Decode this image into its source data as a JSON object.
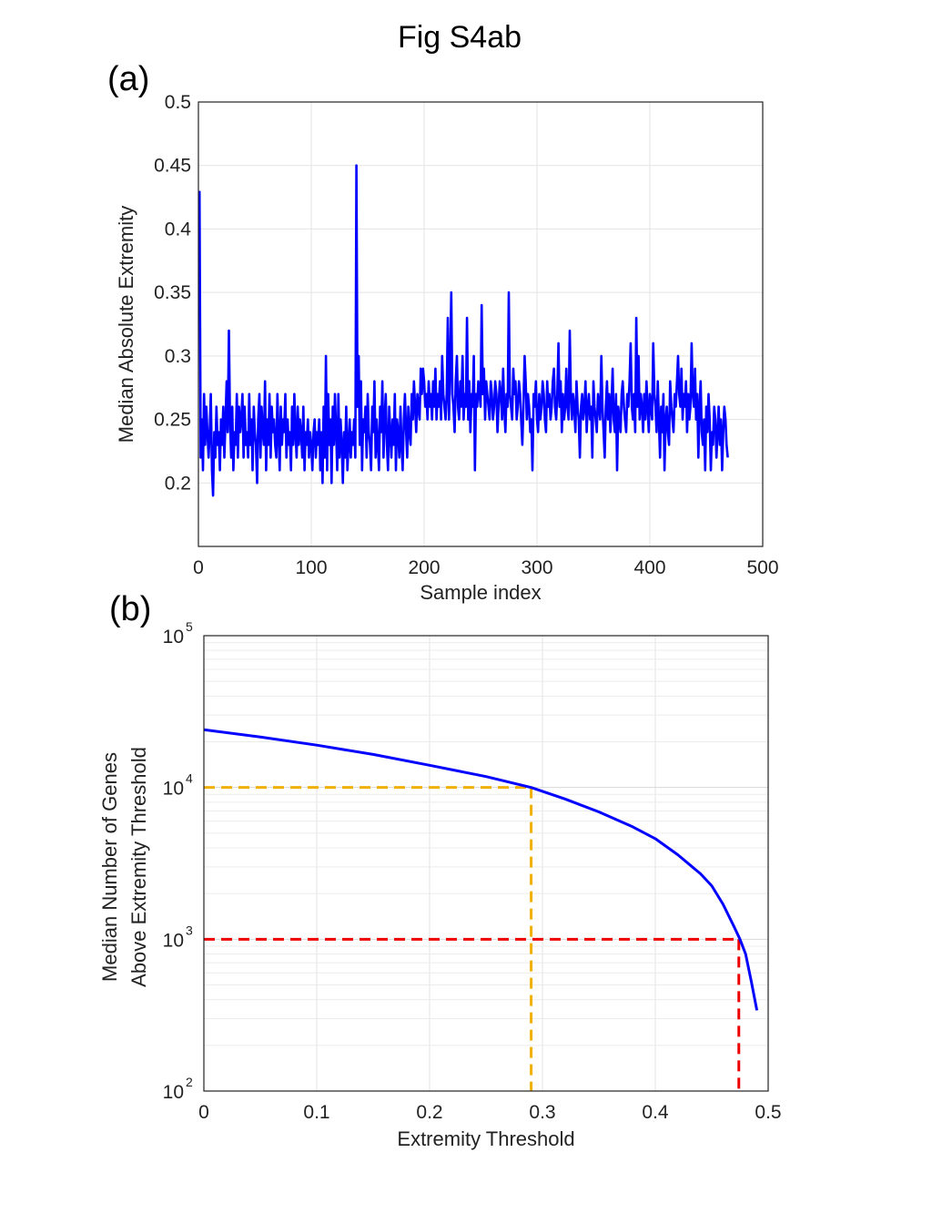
{
  "figure": {
    "title": "Fig S4ab"
  },
  "panels": {
    "a_label": "(a)",
    "b_label": "(b)"
  },
  "chart_data": [
    {
      "type": "line",
      "xlabel": "Sample index",
      "ylabel": "Median Absolute Extremity",
      "xlim": [
        0,
        500
      ],
      "ylim": [
        0.15,
        0.5
      ],
      "xticks": [
        0,
        100,
        200,
        300,
        400,
        500
      ],
      "yticks": [
        0.2,
        0.25,
        0.3,
        0.35,
        0.4,
        0.45,
        0.5
      ],
      "ytick_labels": [
        "0.2",
        "0.25",
        "0.3",
        "0.35",
        "0.4",
        "0.45",
        "0.5"
      ],
      "grid": true,
      "line_color": "#0000ff",
      "series": [
        {
          "x_start": 1,
          "x_step": 1,
          "y": [
            0.43,
            0.22,
            0.25,
            0.21,
            0.27,
            0.23,
            0.26,
            0.24,
            0.22,
            0.24,
            0.27,
            0.21,
            0.19,
            0.24,
            0.22,
            0.26,
            0.23,
            0.24,
            0.21,
            0.25,
            0.23,
            0.26,
            0.22,
            0.25,
            0.28,
            0.24,
            0.32,
            0.25,
            0.22,
            0.26,
            0.21,
            0.24,
            0.23,
            0.27,
            0.22,
            0.26,
            0.24,
            0.25,
            0.27,
            0.22,
            0.26,
            0.23,
            0.24,
            0.22,
            0.27,
            0.23,
            0.25,
            0.21,
            0.26,
            0.24,
            0.23,
            0.2,
            0.25,
            0.27,
            0.22,
            0.26,
            0.24,
            0.23,
            0.28,
            0.21,
            0.25,
            0.23,
            0.27,
            0.22,
            0.26,
            0.24,
            0.25,
            0.23,
            0.22,
            0.27,
            0.24,
            0.21,
            0.26,
            0.23,
            0.25,
            0.24,
            0.27,
            0.22,
            0.25,
            0.23,
            0.24,
            0.21,
            0.26,
            0.23,
            0.27,
            0.24,
            0.22,
            0.26,
            0.23,
            0.25,
            0.24,
            0.22,
            0.26,
            0.21,
            0.24,
            0.23,
            0.25,
            0.22,
            0.24,
            0.23,
            0.21,
            0.24,
            0.25,
            0.22,
            0.24,
            0.23,
            0.25,
            0.21,
            0.24,
            0.2,
            0.26,
            0.22,
            0.3,
            0.21,
            0.27,
            0.23,
            0.25,
            0.2,
            0.26,
            0.23,
            0.27,
            0.24,
            0.21,
            0.27,
            0.22,
            0.25,
            0.23,
            0.2,
            0.24,
            0.22,
            0.26,
            0.21,
            0.23,
            0.25,
            0.22,
            0.24,
            0.23,
            0.25,
            0.22,
            0.45,
            0.26,
            0.3,
            0.23,
            0.28,
            0.21,
            0.25,
            0.24,
            0.26,
            0.22,
            0.27,
            0.24,
            0.23,
            0.21,
            0.26,
            0.24,
            0.28,
            0.22,
            0.25,
            0.23,
            0.21,
            0.26,
            0.24,
            0.28,
            0.22,
            0.25,
            0.27,
            0.23,
            0.21,
            0.26,
            0.24,
            0.22,
            0.25,
            0.23,
            0.27,
            0.21,
            0.25,
            0.24,
            0.22,
            0.26,
            0.23,
            0.21,
            0.25,
            0.27,
            0.24,
            0.22,
            0.26,
            0.24,
            0.23,
            0.27,
            0.25,
            0.28,
            0.26,
            0.24,
            0.27,
            0.26,
            0.25,
            0.29,
            0.27,
            0.29,
            0.28,
            0.26,
            0.27,
            0.25,
            0.28,
            0.26,
            0.27,
            0.25,
            0.28,
            0.26,
            0.29,
            0.25,
            0.27,
            0.26,
            0.28,
            0.25,
            0.3,
            0.27,
            0.26,
            0.25,
            0.27,
            0.33,
            0.25,
            0.29,
            0.35,
            0.27,
            0.26,
            0.24,
            0.28,
            0.3,
            0.26,
            0.25,
            0.28,
            0.26,
            0.3,
            0.25,
            0.27,
            0.26,
            0.33,
            0.25,
            0.28,
            0.24,
            0.27,
            0.26,
            0.3,
            0.21,
            0.27,
            0.26,
            0.28,
            0.27,
            0.26,
            0.34,
            0.27,
            0.29,
            0.25,
            0.28,
            0.27,
            0.26,
            0.25,
            0.28,
            0.27,
            0.25,
            0.26,
            0.28,
            0.27,
            0.24,
            0.26,
            0.28,
            0.27,
            0.25,
            0.29,
            0.26,
            0.24,
            0.27,
            0.26,
            0.35,
            0.27,
            0.26,
            0.25,
            0.29,
            0.27,
            0.28,
            0.25,
            0.26,
            0.28,
            0.27,
            0.25,
            0.23,
            0.26,
            0.3,
            0.28,
            0.25,
            0.27,
            0.26,
            0.24,
            0.25,
            0.21,
            0.27,
            0.26,
            0.28,
            0.25,
            0.24,
            0.27,
            0.25,
            0.26,
            0.28,
            0.27,
            0.25,
            0.24,
            0.28,
            0.26,
            0.27,
            0.25,
            0.26,
            0.28,
            0.29,
            0.26,
            0.25,
            0.27,
            0.31,
            0.26,
            0.28,
            0.24,
            0.27,
            0.25,
            0.26,
            0.29,
            0.26,
            0.25,
            0.32,
            0.27,
            0.25,
            0.27,
            0.26,
            0.24,
            0.28,
            0.26,
            0.25,
            0.22,
            0.26,
            0.27,
            0.25,
            0.26,
            0.28,
            0.24,
            0.26,
            0.27,
            0.25,
            0.26,
            0.22,
            0.28,
            0.26,
            0.25,
            0.24,
            0.27,
            0.26,
            0.25,
            0.3,
            0.26,
            0.24,
            0.22,
            0.26,
            0.28,
            0.25,
            0.27,
            0.24,
            0.26,
            0.29,
            0.25,
            0.24,
            0.27,
            0.21,
            0.26,
            0.25,
            0.24,
            0.27,
            0.28,
            0.26,
            0.25,
            0.24,
            0.27,
            0.26,
            0.28,
            0.31,
            0.26,
            0.25,
            0.27,
            0.24,
            0.33,
            0.26,
            0.3,
            0.25,
            0.27,
            0.26,
            0.24,
            0.27,
            0.25,
            0.28,
            0.26,
            0.24,
            0.27,
            0.26,
            0.25,
            0.31,
            0.27,
            0.26,
            0.24,
            0.28,
            0.25,
            0.22,
            0.26,
            0.24,
            0.27,
            0.21,
            0.25,
            0.26,
            0.24,
            0.23,
            0.28,
            0.26,
            0.25,
            0.24,
            0.27,
            0.26,
            0.28,
            0.3,
            0.27,
            0.26,
            0.29,
            0.25,
            0.27,
            0.26,
            0.28,
            0.24,
            0.27,
            0.25,
            0.26,
            0.31,
            0.27,
            0.26,
            0.29,
            0.25,
            0.27,
            0.22,
            0.26,
            0.28,
            0.24,
            0.23,
            0.25,
            0.21,
            0.26,
            0.24,
            0.27,
            0.25,
            0.21,
            0.24,
            0.23,
            0.26,
            0.25,
            0.22,
            0.24,
            0.26,
            0.23,
            0.25,
            0.21,
            0.24,
            0.26,
            0.25,
            0.23,
            0.22
          ]
        }
      ]
    },
    {
      "type": "line",
      "xlabel": "Extremity Threshold",
      "ylabel_lines": [
        "Median Number of Genes",
        "Above Extremity Threshold"
      ],
      "xlim": [
        0,
        0.5
      ],
      "ylim": [
        100,
        100000
      ],
      "yscale": "log",
      "xticks": [
        0,
        0.1,
        0.2,
        0.3,
        0.4,
        0.5
      ],
      "xtick_labels": [
        "0",
        "0.1",
        "0.2",
        "0.3",
        "0.4",
        "0.5"
      ],
      "ytick_labels": [
        {
          "base": "10",
          "exp": "2",
          "value": 100
        },
        {
          "base": "10",
          "exp": "3",
          "value": 1000
        },
        {
          "base": "10",
          "exp": "4",
          "value": 10000
        },
        {
          "base": "10",
          "exp": "5",
          "value": 100000
        }
      ],
      "grid": true,
      "line_color": "#0000ff",
      "series": [
        {
          "x": [
            0,
            0.05,
            0.1,
            0.15,
            0.2,
            0.25,
            0.29,
            0.32,
            0.35,
            0.38,
            0.4,
            0.42,
            0.44,
            0.45,
            0.46,
            0.47,
            0.475,
            0.48,
            0.485,
            0.49
          ],
          "y": [
            24000,
            21500,
            19000,
            16500,
            14000,
            11800,
            10000,
            8400,
            6900,
            5500,
            4600,
            3600,
            2700,
            2250,
            1700,
            1200,
            1000,
            800,
            530,
            340
          ]
        }
      ],
      "reference_lines": [
        {
          "color": "#f0b000",
          "x": 0.29,
          "y": 10000
        },
        {
          "color": "#ee0000",
          "x": 0.474,
          "y": 1000
        }
      ]
    }
  ]
}
